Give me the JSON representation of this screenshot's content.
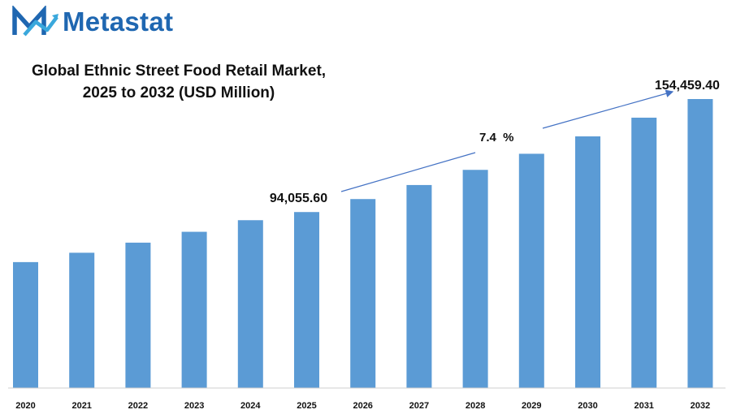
{
  "brand": {
    "name": "Metastat",
    "logo_icon": "metastat-m-logo-icon",
    "primary_color": "#1f67b1",
    "accent_color": "#3aa8dc"
  },
  "chart_data": {
    "type": "bar",
    "title_line1": "Global Ethnic Street Food Retail Market,",
    "title_line2": "2025 to 2032 (USD Million)",
    "categories": [
      "2020",
      "2021",
      "2022",
      "2023",
      "2024",
      "2025",
      "2026",
      "2027",
      "2028",
      "2029",
      "2030",
      "2031",
      "2032"
    ],
    "values": [
      67300,
      72300,
      77700,
      83500,
      89700,
      94055.6,
      101000,
      108500,
      116600,
      125200,
      134500,
      144500,
      154459.4
    ],
    "ylim": [
      0,
      170000
    ],
    "bar_color": "#5b9bd5",
    "data_labels": [
      {
        "index": 5,
        "text": "94,055.60"
      },
      {
        "index": 12,
        "text": "154,459.40"
      }
    ],
    "cagr_label": "7.4  %",
    "arrow_color": "#4472c4",
    "grid": false,
    "legend": "none"
  }
}
